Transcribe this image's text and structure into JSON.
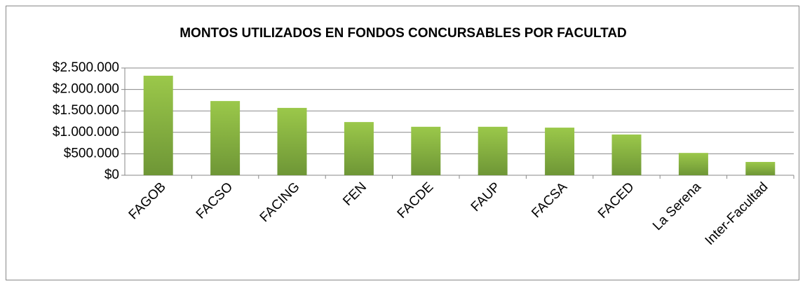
{
  "chart_data": {
    "type": "bar",
    "title": "MONTOS UTILIZADOS EN FONDOS CONCURSABLES POR FACULTAD",
    "categories": [
      "FAGOB",
      "FACSO",
      "FACING",
      "FEN",
      "FACDE",
      "FAUP",
      "FACSA",
      "FACED",
      "La Serena",
      "Inter-Facultad"
    ],
    "values": [
      2320000,
      1730000,
      1570000,
      1240000,
      1130000,
      1130000,
      1110000,
      950000,
      520000,
      310000
    ],
    "color": "#9bc84a",
    "ylim": [
      0,
      2500000
    ],
    "yticks": [
      {
        "value": 0,
        "label": "$0"
      },
      {
        "value": 500000,
        "label": "$500.000"
      },
      {
        "value": 1000000,
        "label": "$1.000.000"
      },
      {
        "value": 1500000,
        "label": "$1.500.000"
      },
      {
        "value": 2000000,
        "label": "$2.000.000"
      },
      {
        "value": 2500000,
        "label": "$2.500.000"
      }
    ],
    "grid": true
  }
}
